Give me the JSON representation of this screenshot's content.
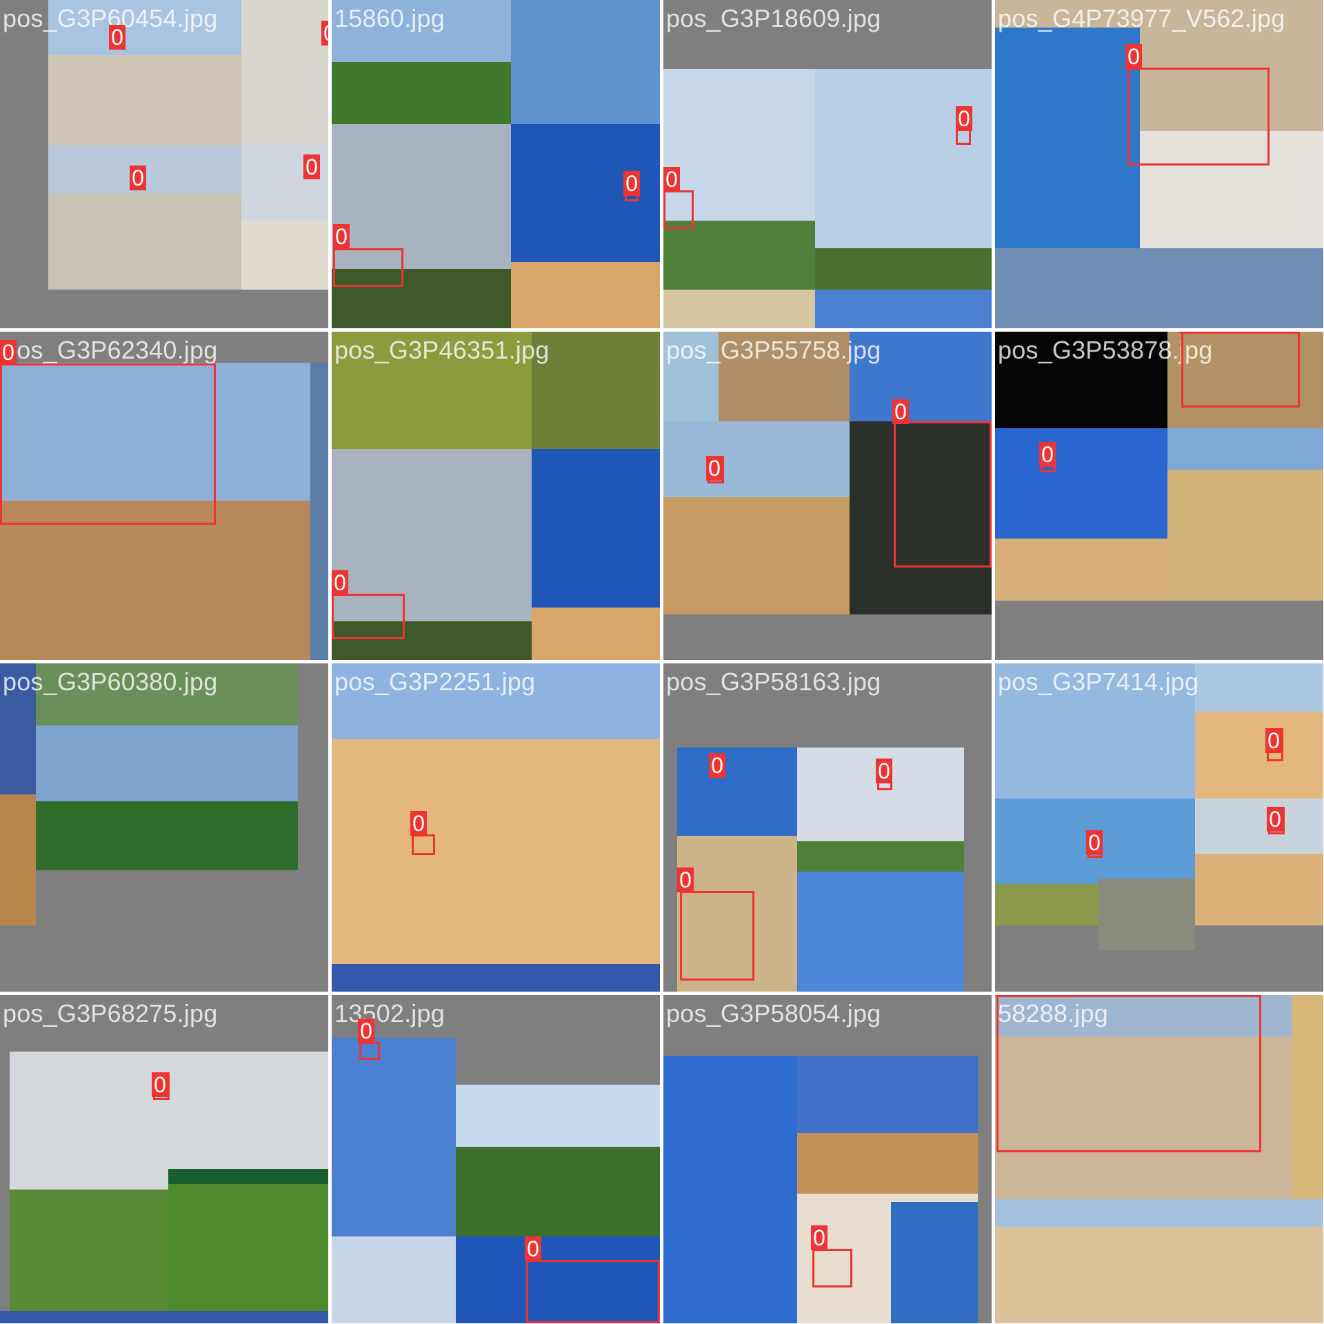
{
  "mosaic": {
    "tiles": [
      {
        "filename": "pos_G3P60454.jpg",
        "detections": [
          "0",
          "0",
          "0",
          "0"
        ]
      },
      {
        "filename": "15860.jpg",
        "detections": [
          "0",
          "0"
        ]
      },
      {
        "filename": "pos_G3P18609.jpg",
        "detections": [
          "0",
          "0"
        ]
      },
      {
        "filename": "pos_G4P73977_V562.jpg",
        "detections": [
          "0"
        ]
      },
      {
        "filename": "pos_G3P62340.jpg",
        "detections": [
          "0"
        ]
      },
      {
        "filename": "pos_G3P46351.jpg",
        "detections": [
          "0"
        ]
      },
      {
        "filename": "pos_G3P55758.jpg",
        "detections": [
          "0",
          "0"
        ]
      },
      {
        "filename": "pos_G3P53878.jpg",
        "detections": [
          "0",
          "0"
        ]
      },
      {
        "filename": "pos_G3P60380.jpg",
        "detections": []
      },
      {
        "filename": "pos_G3P2251.jpg",
        "detections": [
          "0"
        ]
      },
      {
        "filename": "pos_G3P58163.jpg",
        "detections": [
          "0",
          "0",
          "0"
        ]
      },
      {
        "filename": "pos_G3P7414.jpg",
        "detections": [
          "0",
          "0",
          "0"
        ]
      },
      {
        "filename": "pos_G3P68275.jpg",
        "detections": [
          "0"
        ]
      },
      {
        "filename": "13502.jpg",
        "detections": [
          "0",
          "0"
        ]
      },
      {
        "filename": "pos_G3P58054.jpg",
        "detections": [
          "0"
        ]
      },
      {
        "filename": "58288.jpg",
        "detections": [
          "0"
        ]
      }
    ]
  },
  "colors": {
    "box": "#ee3333",
    "padding": "#7f7f7f",
    "sky": "#6f9fd8",
    "deep_sky": "#1f56b8",
    "sand": "#d8b07a",
    "grass": "#5c8a3a",
    "gravel": "#cfc6b6"
  }
}
